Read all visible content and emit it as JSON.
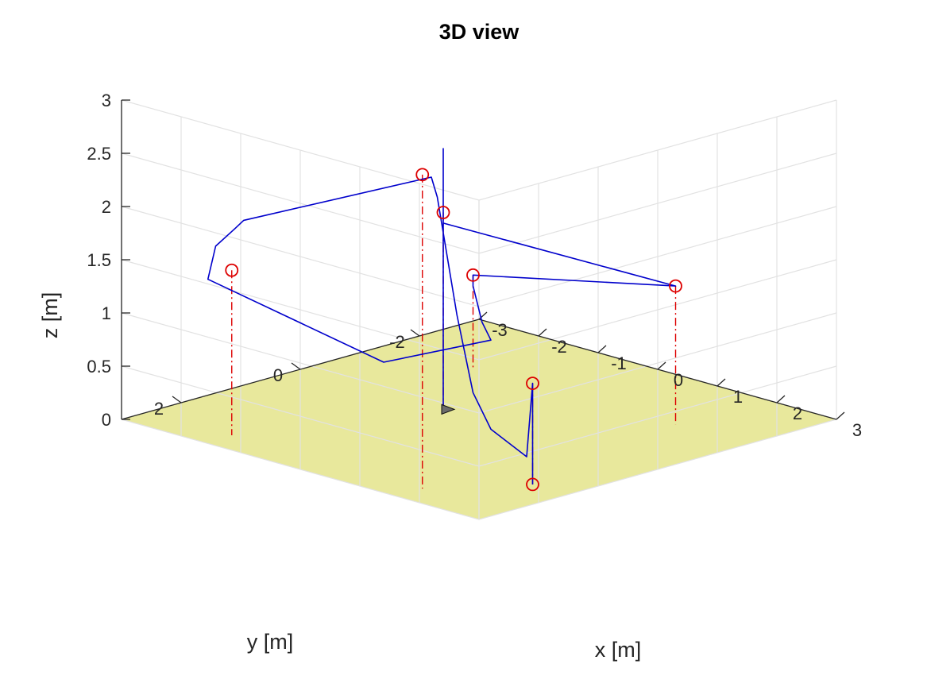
{
  "chart_data": {
    "type": "line3d",
    "title": "3D view",
    "xlabel": "x [m]",
    "ylabel": "y [m]",
    "zlabel": "z [m]",
    "xlim": [
      -3,
      3
    ],
    "ylim": [
      -3,
      3
    ],
    "zlim": [
      0,
      3
    ],
    "x_ticks": [
      "-3",
      "-2",
      "-1",
      "0",
      "1",
      "2",
      "3"
    ],
    "y_ticks": [
      "-2",
      "0",
      "2"
    ],
    "z_ticks": [
      "0",
      "0.5",
      "1",
      "1.5",
      "2",
      "2.5",
      "3"
    ],
    "grid": true,
    "floor_color": "#e8e89c",
    "colors": {
      "trajectory": "#0000cc",
      "waypoint": "#dd0000",
      "drop_line": "#dd0000"
    },
    "waypoints": [
      {
        "x": 2.4,
        "y": 1.5,
        "z": 0.0
      },
      {
        "x": 2.4,
        "y": 1.5,
        "z": 0.95
      },
      {
        "x": 1.8,
        "y": -1.5,
        "z": 1.3
      },
      {
        "x": -1.6,
        "y": -1.5,
        "z": 0.87
      },
      {
        "x": -1.6,
        "y": 2.55,
        "z": 1.55
      },
      {
        "x": 1.6,
        "y": 2.55,
        "z": 2.95
      },
      {
        "x": -0.6,
        "y": 0.0,
        "z": 1.85
      }
    ],
    "trajectory": [
      {
        "x": 2.4,
        "y": 1.5,
        "z": 0.0
      },
      {
        "x": 2.4,
        "y": 1.5,
        "z": 0.95
      },
      {
        "x": 2.7,
        "y": 1.9,
        "z": 0.37
      },
      {
        "x": 2.15,
        "y": 1.95,
        "z": 0.55
      },
      {
        "x": 1.7,
        "y": 1.8,
        "z": 0.8
      },
      {
        "x": 1.47,
        "y": 1.84,
        "z": 1.5
      },
      {
        "x": 1.6,
        "y": 2.3,
        "z": 2.7
      },
      {
        "x": 1.75,
        "y": 2.55,
        "z": 2.95
      },
      {
        "x": -1.4,
        "y": 2.55,
        "z": 2.05
      },
      {
        "x": -1.7,
        "y": 2.4,
        "z": 1.9
      },
      {
        "x": -1.82,
        "y": 2.6,
        "z": 1.75
      },
      {
        "x": -1.85,
        "y": 2.7,
        "z": 1.45
      },
      {
        "x": -0.6,
        "y": 1.0,
        "z": 0.6
      },
      {
        "x": -1.0,
        "y": -1.2,
        "z": 0.4
      },
      {
        "x": -1.3,
        "y": -1.35,
        "z": 0.5
      },
      {
        "x": -1.5,
        "y": -1.4,
        "z": 0.8
      },
      {
        "x": -1.6,
        "y": -1.5,
        "z": 0.87
      },
      {
        "x": 1.8,
        "y": -1.5,
        "z": 1.3
      },
      {
        "x": -0.6,
        "y": 0.0,
        "z": 1.75
      },
      {
        "x": -0.6,
        "y": 0.0,
        "z": 2.45
      },
      {
        "x": -0.6,
        "y": 0.0,
        "z": 0.0
      }
    ],
    "marker": {
      "x": -0.6,
      "y": 0.0,
      "z": 0.0
    }
  }
}
